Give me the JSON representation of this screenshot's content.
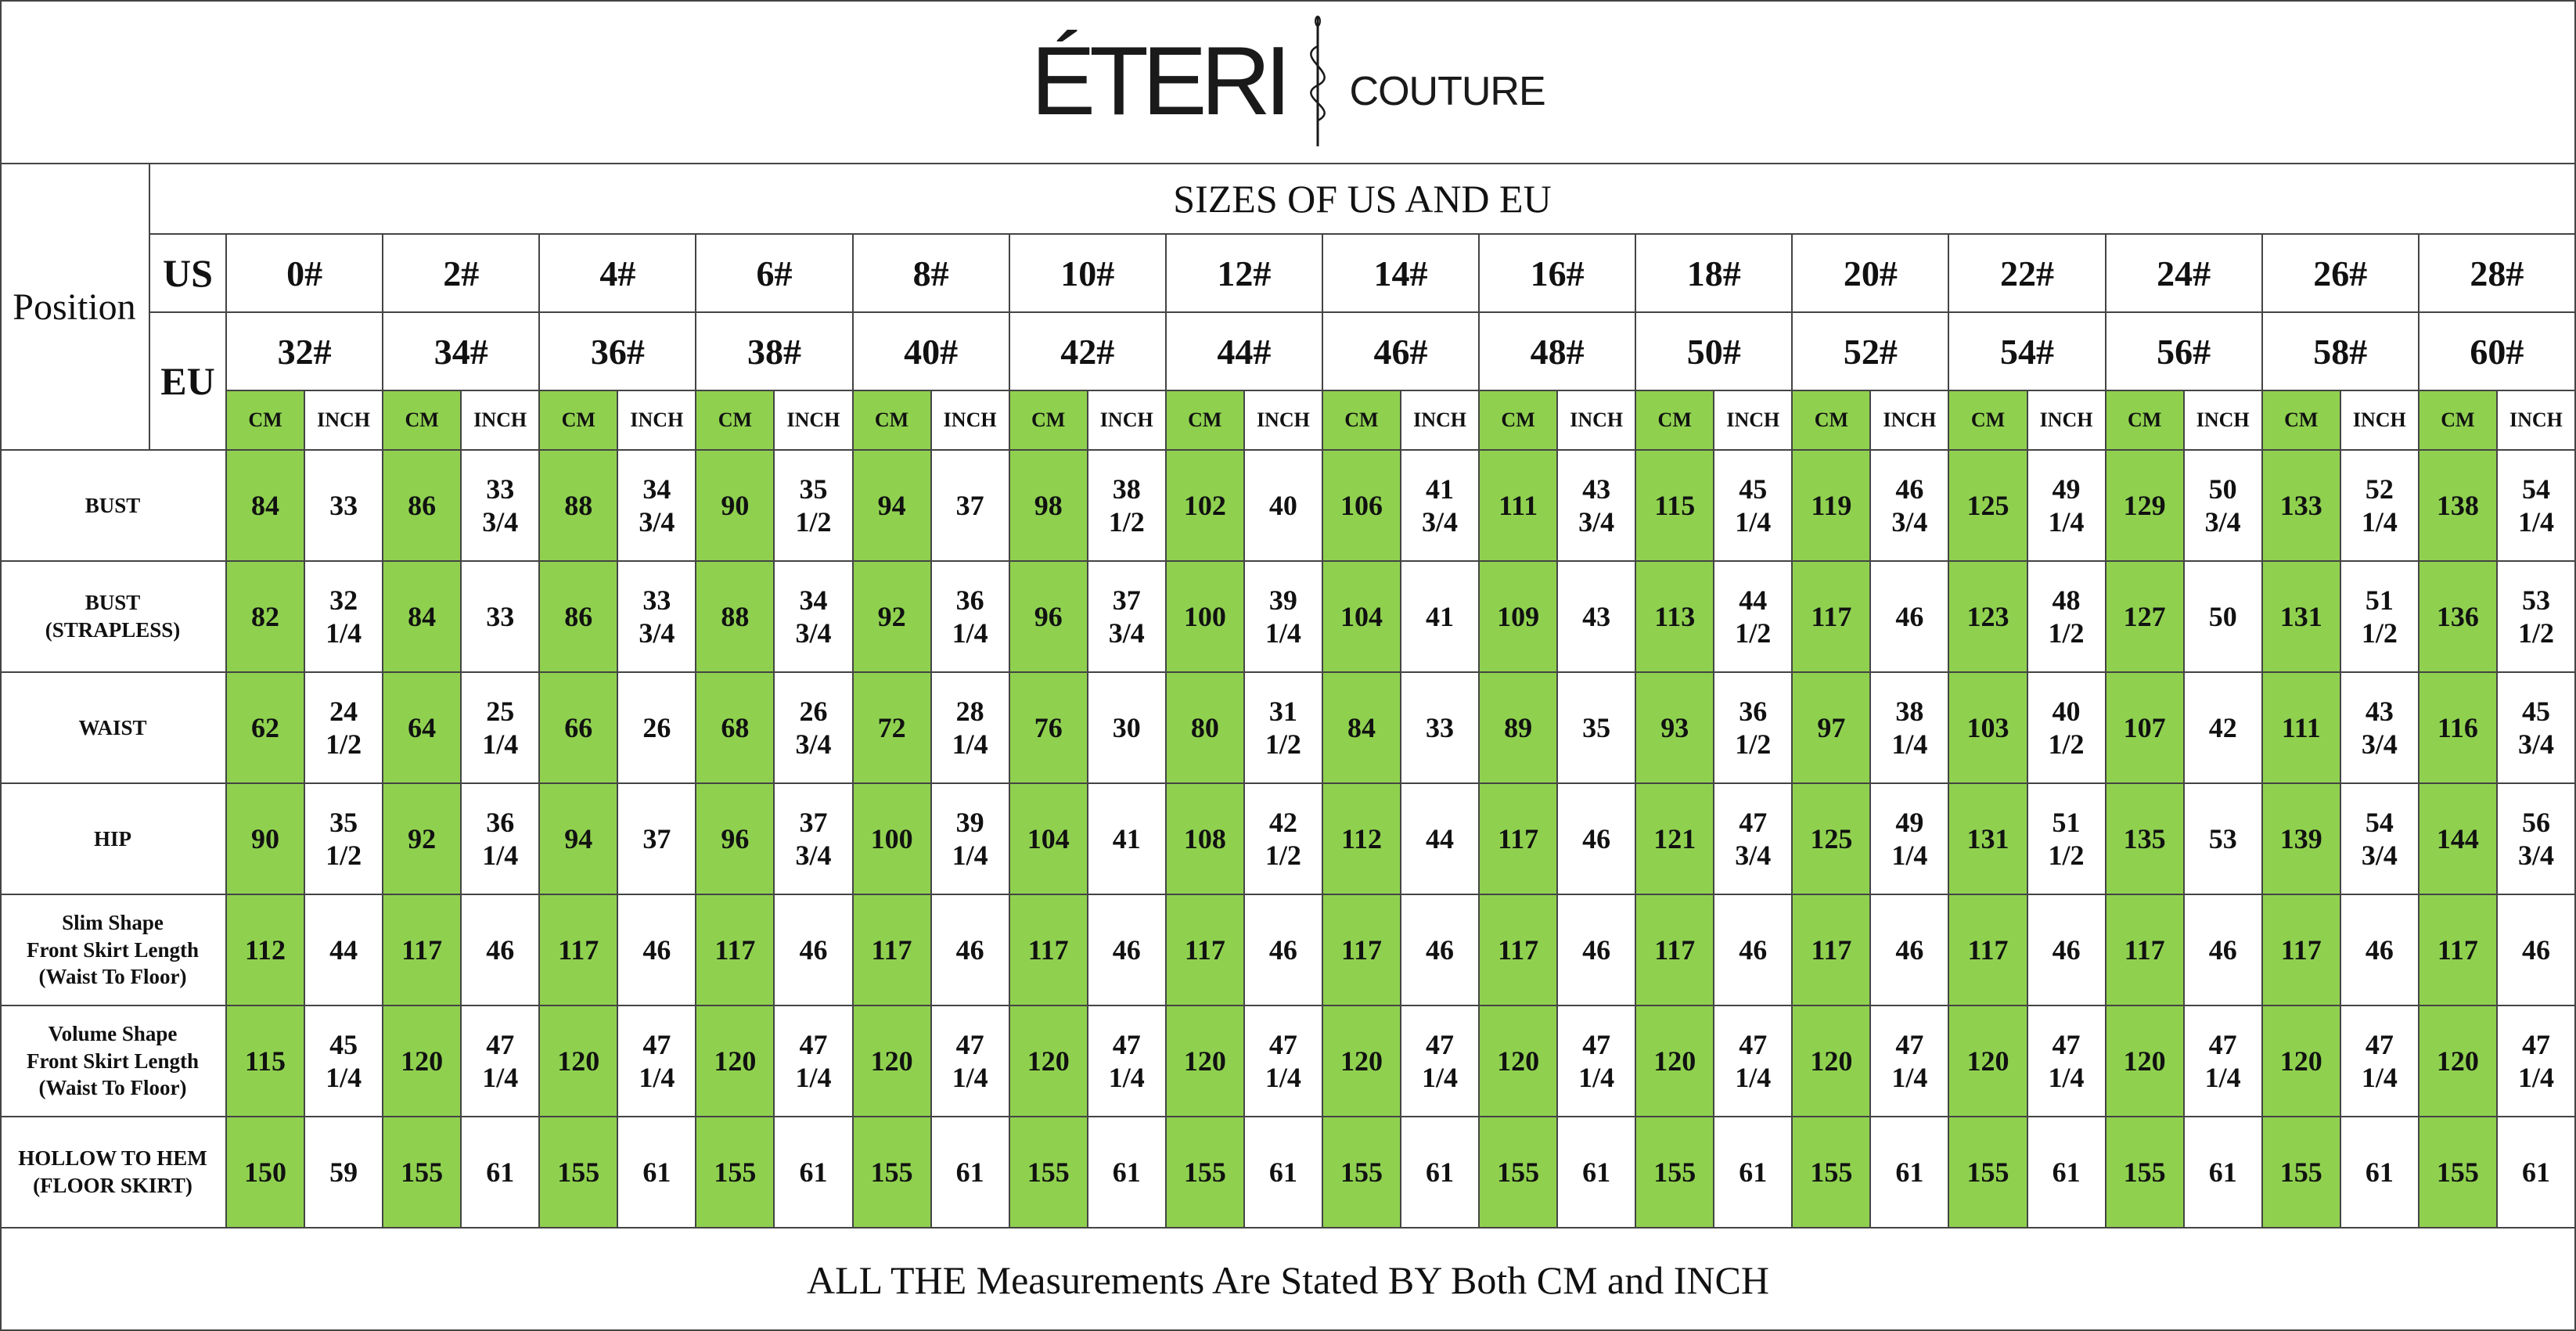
{
  "brand": {
    "name": "ÉTERI",
    "tagline": "COUTURE",
    "logo_icon": "needle-thread-icon"
  },
  "table": {
    "title": "SIZES OF US AND EU",
    "position_label": "Position",
    "us_label": "US",
    "eu_label": "EU",
    "unit_labels": {
      "cm": "CM",
      "inch": "INCH"
    },
    "cm_color": "#8fd14f",
    "us_sizes": [
      "0#",
      "2#",
      "4#",
      "6#",
      "8#",
      "10#",
      "12#",
      "14#",
      "16#",
      "18#",
      "20#",
      "22#",
      "24#",
      "26#",
      "28#"
    ],
    "eu_sizes": [
      "32#",
      "34#",
      "36#",
      "38#",
      "40#",
      "42#",
      "44#",
      "46#",
      "48#",
      "50#",
      "52#",
      "54#",
      "56#",
      "58#",
      "60#"
    ],
    "rows": [
      {
        "label": "BUST",
        "cm": [
          "84",
          "86",
          "88",
          "90",
          "94",
          "98",
          "102",
          "106",
          "111",
          "115",
          "119",
          "125",
          "129",
          "133",
          "138"
        ],
        "inch": [
          "33",
          "33\n3/4",
          "34\n3/4",
          "35\n1/2",
          "37",
          "38\n1/2",
          "40",
          "41\n3/4",
          "43\n3/4",
          "45\n1/4",
          "46\n3/4",
          "49\n1/4",
          "50\n3/4",
          "52\n1/4",
          "54\n1/4"
        ]
      },
      {
        "label": "BUST\n(STRAPLESS)",
        "cm": [
          "82",
          "84",
          "86",
          "88",
          "92",
          "96",
          "100",
          "104",
          "109",
          "113",
          "117",
          "123",
          "127",
          "131",
          "136"
        ],
        "inch": [
          "32\n1/4",
          "33",
          "33\n3/4",
          "34\n3/4",
          "36\n1/4",
          "37\n3/4",
          "39\n1/4",
          "41",
          "43",
          "44\n1/2",
          "46",
          "48\n1/2",
          "50",
          "51\n1/2",
          "53\n1/2"
        ]
      },
      {
        "label": "WAIST",
        "cm": [
          "62",
          "64",
          "66",
          "68",
          "72",
          "76",
          "80",
          "84",
          "89",
          "93",
          "97",
          "103",
          "107",
          "111",
          "116"
        ],
        "inch": [
          "24\n1/2",
          "25\n1/4",
          "26",
          "26\n3/4",
          "28\n1/4",
          "30",
          "31\n1/2",
          "33",
          "35",
          "36\n1/2",
          "38\n1/4",
          "40\n1/2",
          "42",
          "43\n3/4",
          "45\n3/4"
        ]
      },
      {
        "label": "HIP",
        "cm": [
          "90",
          "92",
          "94",
          "96",
          "100",
          "104",
          "108",
          "112",
          "117",
          "121",
          "125",
          "131",
          "135",
          "139",
          "144"
        ],
        "inch": [
          "35\n1/2",
          "36\n1/4",
          "37",
          "37\n3/4",
          "39\n1/4",
          "41",
          "42\n1/2",
          "44",
          "46",
          "47\n3/4",
          "49\n1/4",
          "51\n1/2",
          "53",
          "54\n3/4",
          "56\n3/4"
        ]
      },
      {
        "label": "Slim Shape\nFront Skirt Length\n(Waist To Floor)",
        "cm": [
          "112",
          "117",
          "117",
          "117",
          "117",
          "117",
          "117",
          "117",
          "117",
          "117",
          "117",
          "117",
          "117",
          "117",
          "117"
        ],
        "inch": [
          "44",
          "46",
          "46",
          "46",
          "46",
          "46",
          "46",
          "46",
          "46",
          "46",
          "46",
          "46",
          "46",
          "46",
          "46"
        ]
      },
      {
        "label": "Volume Shape\nFront Skirt Length\n(Waist To Floor)",
        "cm": [
          "115",
          "120",
          "120",
          "120",
          "120",
          "120",
          "120",
          "120",
          "120",
          "120",
          "120",
          "120",
          "120",
          "120",
          "120"
        ],
        "inch": [
          "45\n1/4",
          "47\n1/4",
          "47\n1/4",
          "47\n1/4",
          "47\n1/4",
          "47\n1/4",
          "47\n1/4",
          "47\n1/4",
          "47\n1/4",
          "47\n1/4",
          "47\n1/4",
          "47\n1/4",
          "47\n1/4",
          "47\n1/4",
          "47\n1/4"
        ]
      },
      {
        "label": "HOLLOW TO HEM\n(FLOOR SKIRT)",
        "cm": [
          "150",
          "155",
          "155",
          "155",
          "155",
          "155",
          "155",
          "155",
          "155",
          "155",
          "155",
          "155",
          "155",
          "155",
          "155"
        ],
        "inch": [
          "59",
          "61",
          "61",
          "61",
          "61",
          "61",
          "61",
          "61",
          "61",
          "61",
          "61",
          "61",
          "61",
          "61",
          "61"
        ]
      }
    ]
  },
  "footer": {
    "note": "ALL THE  Measurements Are Stated  BY Both CM and INCH"
  }
}
